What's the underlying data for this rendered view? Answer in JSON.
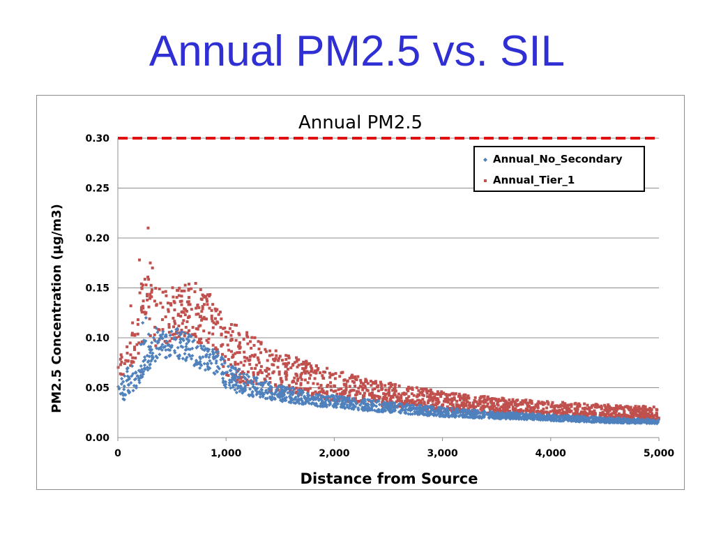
{
  "slide": {
    "title": "Annual PM2.5 vs. SIL"
  },
  "chart_data": {
    "type": "scatter",
    "title": "Annual PM2.5",
    "xlabel": "Distance from Source",
    "ylabel": "PM2.5 Concentration (µg/m3)",
    "xlim": [
      0,
      5000
    ],
    "ylim": [
      0,
      0.3
    ],
    "x_ticks": [
      0,
      1000,
      2000,
      3000,
      4000,
      5000
    ],
    "x_tick_labels": [
      "0",
      "1,000",
      "2,000",
      "3,000",
      "4,000",
      "5,000"
    ],
    "y_ticks": [
      0,
      0.05,
      0.1,
      0.15,
      0.2,
      0.25,
      0.3
    ],
    "y_tick_labels": [
      "0.00",
      "0.05",
      "0.10",
      "0.15",
      "0.20",
      "0.25",
      "0.30"
    ],
    "grid": "horizontal",
    "legend_position": "top-right",
    "reference_line": {
      "y": 0.3,
      "color": "#e01010",
      "style": "dashed"
    },
    "series": [
      {
        "name": "Annual_No_Secondary",
        "color": "#4f81bd",
        "marker": "diamond",
        "x": [
          0,
          80,
          150,
          250,
          350,
          450,
          550,
          650,
          750,
          850,
          950,
          1000,
          1200,
          1400,
          1600,
          1800,
          2000,
          2500,
          3000,
          3500,
          4000,
          4500,
          5000
        ],
        "y_low": [
          0.04,
          0.036,
          0.045,
          0.065,
          0.075,
          0.08,
          0.08,
          0.075,
          0.07,
          0.066,
          0.06,
          0.048,
          0.042,
          0.038,
          0.035,
          0.032,
          0.03,
          0.025,
          0.021,
          0.019,
          0.017,
          0.015,
          0.014
        ],
        "y_high": [
          0.06,
          0.07,
          0.085,
          0.1,
          0.11,
          0.105,
          0.11,
          0.105,
          0.095,
          0.09,
          0.085,
          0.075,
          0.065,
          0.055,
          0.05,
          0.045,
          0.042,
          0.036,
          0.03,
          0.026,
          0.023,
          0.02,
          0.018
        ]
      },
      {
        "name": "Annual_Tier_1",
        "color": "#c0504d",
        "marker": "square",
        "x": [
          0,
          80,
          150,
          250,
          350,
          450,
          550,
          650,
          750,
          850,
          950,
          1000,
          1200,
          1400,
          1600,
          1800,
          2000,
          2500,
          3000,
          3500,
          4000,
          4500,
          5000
        ],
        "y_low": [
          0.06,
          0.065,
          0.075,
          0.085,
          0.09,
          0.095,
          0.1,
          0.1,
          0.095,
          0.09,
          0.082,
          0.06,
          0.052,
          0.047,
          0.043,
          0.04,
          0.037,
          0.031,
          0.027,
          0.024,
          0.021,
          0.019,
          0.018
        ],
        "y_high": [
          0.085,
          0.1,
          0.135,
          0.175,
          0.15,
          0.15,
          0.155,
          0.158,
          0.155,
          0.145,
          0.13,
          0.12,
          0.105,
          0.092,
          0.082,
          0.075,
          0.068,
          0.055,
          0.046,
          0.04,
          0.036,
          0.033,
          0.031
        ]
      }
    ],
    "outliers": [
      {
        "series": "Annual_Tier_1",
        "x": 280,
        "y": 0.21
      },
      {
        "series": "Annual_Tier_1",
        "x": 200,
        "y": 0.178
      },
      {
        "series": "Annual_Tier_1",
        "x": 300,
        "y": 0.175
      },
      {
        "series": "Annual_Tier_1",
        "x": 320,
        "y": 0.17
      },
      {
        "series": "Annual_Tier_1",
        "x": 120,
        "y": 0.132
      },
      {
        "series": "Annual_Tier_1",
        "x": 30,
        "y": 0.083
      },
      {
        "series": "Annual_No_Secondary",
        "x": 60,
        "y": 0.038
      },
      {
        "series": "Annual_No_Secondary",
        "x": 260,
        "y": 0.12
      },
      {
        "series": "Annual_No_Secondary",
        "x": 230,
        "y": 0.115
      }
    ]
  }
}
